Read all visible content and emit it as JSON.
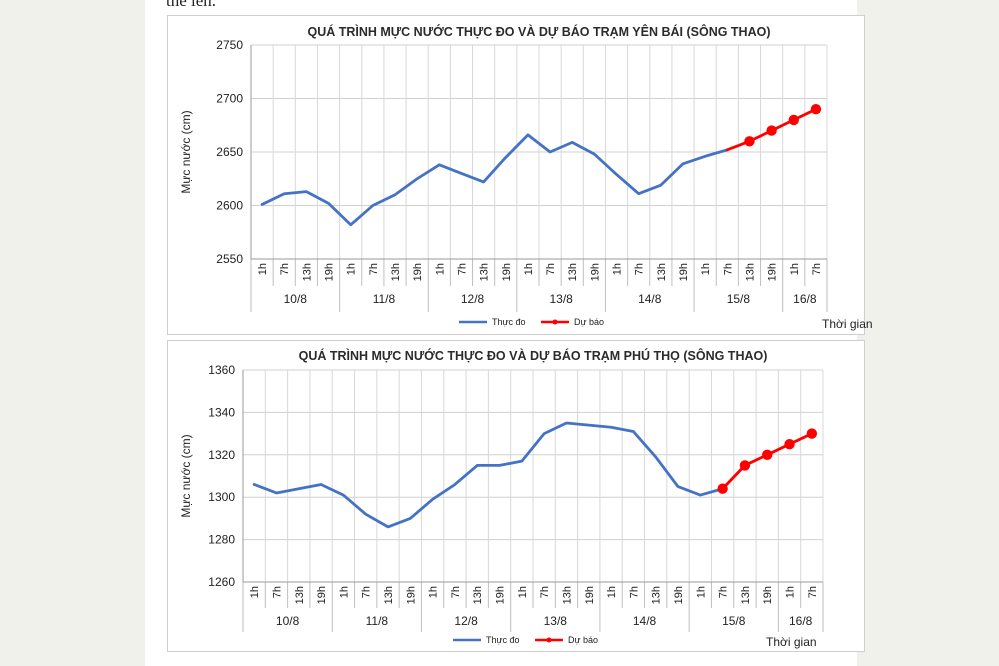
{
  "page": {
    "top_text": "thể lên."
  },
  "chart_data": [
    {
      "type": "line",
      "title": "QUÁ TRÌNH MỰC NƯỚC THỰC ĐO VÀ DỰ BÁO TRẠM YÊN BÁI (SÔNG THAO)",
      "ylabel": "Mực nước (cm)",
      "xlabel": "Thời gian",
      "ylim": [
        2550,
        2750
      ],
      "yticks": [
        2550,
        2600,
        2650,
        2700,
        2750
      ],
      "grid": true,
      "hours": [
        "1h",
        "7h",
        "13h",
        "19h",
        "1h",
        "7h",
        "13h",
        "19h",
        "1h",
        "7h",
        "13h",
        "19h",
        "1h",
        "7h",
        "13h",
        "19h",
        "1h",
        "7h",
        "13h",
        "19h",
        "1h",
        "7h",
        "13h",
        "19h",
        "1h",
        "7h"
      ],
      "days": [
        {
          "label": "10/8",
          "count": 4
        },
        {
          "label": "11/8",
          "count": 4
        },
        {
          "label": "12/8",
          "count": 4
        },
        {
          "label": "13/8",
          "count": 4
        },
        {
          "label": "14/8",
          "count": 4
        },
        {
          "label": "15/8",
          "count": 4
        },
        {
          "label": "16/8",
          "count": 2
        }
      ],
      "legend": [
        "Thực đo",
        "Dự báo"
      ],
      "series": [
        {
          "name": "Thực đo",
          "color": "#4472c4",
          "markers": false,
          "x": [
            0,
            1,
            2,
            3,
            4,
            5,
            6,
            7,
            8,
            9,
            10,
            11,
            12,
            13,
            14,
            15,
            16,
            17,
            18,
            19,
            20,
            21
          ],
          "values": [
            2601,
            2611,
            2613,
            2602,
            2582,
            2600,
            2610,
            2625,
            2638,
            2630,
            2622,
            2645,
            2666,
            2650,
            2659,
            2648,
            2629,
            2611,
            2619,
            2639,
            2646,
            2652
          ]
        },
        {
          "name": "Dự báo",
          "color": "#ff0000",
          "markers": true,
          "x": [
            21,
            22,
            23,
            24,
            25
          ],
          "values": [
            2652,
            2660,
            2670,
            2680,
            2690
          ]
        }
      ]
    },
    {
      "type": "line",
      "title": "QUÁ TRÌNH MỰC NƯỚC THỰC ĐO VÀ DỰ BÁO TRẠM PHÚ THỌ (SÔNG THAO)",
      "ylabel": "Mực nước (cm)",
      "xlabel": "Thời gian",
      "ylim": [
        1260,
        1360
      ],
      "yticks": [
        1260,
        1280,
        1300,
        1320,
        1340,
        1360
      ],
      "grid": true,
      "hours": [
        "1h",
        "7h",
        "13h",
        "19h",
        "1h",
        "7h",
        "13h",
        "19h",
        "1h",
        "7h",
        "13h",
        "19h",
        "1h",
        "7h",
        "13h",
        "19h",
        "1h",
        "7h",
        "13h",
        "19h",
        "1h",
        "7h",
        "13h",
        "19h",
        "1h",
        "7h"
      ],
      "days": [
        {
          "label": "10/8",
          "count": 4
        },
        {
          "label": "11/8",
          "count": 4
        },
        {
          "label": "12/8",
          "count": 4
        },
        {
          "label": "13/8",
          "count": 4
        },
        {
          "label": "14/8",
          "count": 4
        },
        {
          "label": "15/8",
          "count": 4
        },
        {
          "label": "16/8",
          "count": 2
        }
      ],
      "legend": [
        "Thực đo",
        "Dự báo"
      ],
      "series": [
        {
          "name": "Thực đo",
          "color": "#4472c4",
          "markers": false,
          "x": [
            0,
            1,
            2,
            3,
            4,
            5,
            6,
            7,
            8,
            9,
            10,
            11,
            12,
            13,
            14,
            15,
            16,
            17,
            18,
            19,
            20,
            21
          ],
          "values": [
            1306,
            1302,
            1304,
            1306,
            1301,
            1292,
            1286,
            1290,
            1299,
            1306,
            1315,
            1315,
            1317,
            1330,
            1335,
            1334,
            1333,
            1331,
            1319,
            1305,
            1301,
            1304
          ]
        },
        {
          "name": "Dự báo",
          "color": "#ff0000",
          "markers": true,
          "x": [
            21,
            22,
            23,
            24,
            25
          ],
          "values": [
            1304,
            1315,
            1320,
            1325,
            1330
          ]
        }
      ]
    }
  ]
}
